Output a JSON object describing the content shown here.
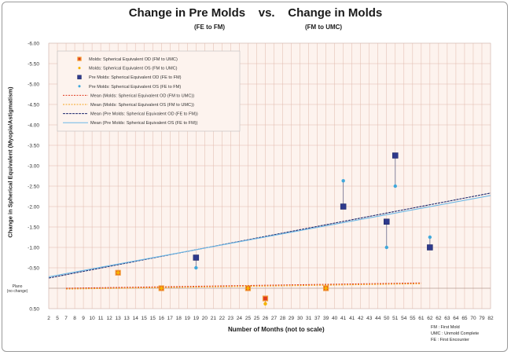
{
  "chart_data": {
    "type": "scatter",
    "title": "Change in Pre Molds    vs.    Change in Molds",
    "subtitle_left": "(FE to FM)",
    "subtitle_right": "(FM to UMC)",
    "xlabel": "Number of Months (not to scale)",
    "ylabel": "Change in Spherical Equivalent (Myopia/Astigmatism)",
    "categories": [
      "2",
      "5",
      "7",
      "8",
      "9",
      "10",
      "11",
      "12",
      "13",
      "13",
      "14",
      "15",
      "15",
      "16",
      "17",
      "18",
      "19",
      "19",
      "20",
      "21",
      "22",
      "23",
      "24",
      "25",
      "25",
      "26",
      "27",
      "28",
      "29",
      "30",
      "31",
      "37",
      "39",
      "40",
      "41",
      "41",
      "42",
      "43",
      "44",
      "50",
      "51",
      "54",
      "55",
      "61",
      "62",
      "62",
      "63",
      "64",
      "65",
      "70",
      "79",
      "82"
    ],
    "ylim": [
      0.5,
      -6.0
    ],
    "y_ticks": [
      {
        "value": 0.5,
        "label": "0.50"
      },
      {
        "value": 0.0,
        "label": "Plano\n(no change)"
      },
      {
        "value": -0.5,
        "label": "-0.50"
      },
      {
        "value": -1.0,
        "label": "-1.00"
      },
      {
        "value": -1.5,
        "label": "-1.50"
      },
      {
        "value": -2.0,
        "label": "-2.00"
      },
      {
        "value": -2.5,
        "label": "-2.50"
      },
      {
        "value": -3.0,
        "label": "-3.00"
      },
      {
        "value": -3.5,
        "label": "-3.50"
      },
      {
        "value": -4.0,
        "label": "-4.00"
      },
      {
        "value": -4.5,
        "label": "-4.50"
      },
      {
        "value": -5.0,
        "label": "-5.00"
      },
      {
        "value": -5.5,
        "label": "-5.50"
      },
      {
        "value": -6.0,
        "label": "-6.00"
      }
    ],
    "series": [
      {
        "name": "Molds: Spherical Equivalent OD (FM to UMC)",
        "marker": "square",
        "color": "#e03a1e",
        "edge": "#f2a03a",
        "points": [
          {
            "xi": 8,
            "y": -0.38
          },
          {
            "xi": 13,
            "y": 0.0
          },
          {
            "xi": 23,
            "y": 0.0
          },
          {
            "xi": 25,
            "y": 0.25
          },
          {
            "xi": 32,
            "y": 0.0
          }
        ]
      },
      {
        "name": "Molds: Spherical Equivalent OS (FM to UMC)",
        "marker": "dot",
        "color": "#f5b400",
        "points": [
          {
            "xi": 8,
            "y": -0.38
          },
          {
            "xi": 13,
            "y": 0.0
          },
          {
            "xi": 23,
            "y": 0.0
          },
          {
            "xi": 25,
            "y": 0.38
          },
          {
            "xi": 32,
            "y": 0.0
          }
        ]
      },
      {
        "name": "Pre Molds: Spherical Equivalent OD (FE to FM)",
        "marker": "square",
        "color": "#2e3a8c",
        "points": [
          {
            "xi": 17,
            "y": -0.75
          },
          {
            "xi": 34,
            "y": -2.0
          },
          {
            "xi": 39,
            "y": -1.63
          },
          {
            "xi": 40,
            "y": -3.25
          },
          {
            "xi": 44,
            "y": -1.0
          }
        ]
      },
      {
        "name": "Pre Molds: Spherical Equivalent OS (FE to FM)",
        "marker": "dot",
        "color": "#3fa8dc",
        "points": [
          {
            "xi": 17,
            "y": -0.5
          },
          {
            "xi": 34,
            "y": -2.63
          },
          {
            "xi": 39,
            "y": -1.0
          },
          {
            "xi": 40,
            "y": -2.5
          },
          {
            "xi": 44,
            "y": -1.25
          }
        ]
      }
    ],
    "trendlines": [
      {
        "name": "Mean (Molds: Spherical Equivalent OD (FM to UMC))",
        "color": "#e03a1e",
        "dash": "2,1.5",
        "from": {
          "xi": 2,
          "y": 0.0
        },
        "to": {
          "xi": 43,
          "y": -0.13
        }
      },
      {
        "name": "Mean (Molds: Spherical Equivalent OS (FM to UMC))",
        "color": "#f5a623",
        "dash": "2,1.5",
        "from": {
          "xi": 2,
          "y": 0.02
        },
        "to": {
          "xi": 43,
          "y": -0.11
        }
      },
      {
        "name": "Mean (Pre Molds: Spherical Equivalent OD (FE to FM))",
        "color": "#1f2a6e",
        "dash": "3,1",
        "from": {
          "xi": 0,
          "y": -0.25
        },
        "to": {
          "xi": 51,
          "y": -2.33
        }
      },
      {
        "name": "Mean (Pre Molds: Spherical Equivalent OS (FE to FM))",
        "color": "#6cb8e6",
        "dash": "",
        "from": {
          "xi": 0,
          "y": -0.28
        },
        "to": {
          "xi": 51,
          "y": -2.27
        }
      }
    ],
    "legend": {
      "placement": "top-left",
      "entries": [
        "Molds: Spherical Equivalent OD (FM to UMC)",
        "Molds: Spherical Equivalent OS (FM to UMC)",
        "Pre Molds: Spherical Equivalent OD (FE to FM)",
        "Pre Molds: Spherical Equivalent OS (FE to FM)",
        "Mean (Molds: Spherical Equivalent OD (FM to UMC))",
        "Mean (Molds: Spherical Equivalent OS (FM to UMC))",
        "Mean (Pre Molds: Spherical Equivalent OD (FE to FM))",
        "Mean (Pre Molds: Spherical Equivalent OS (FE to FM))"
      ]
    },
    "grid": true,
    "footnotes": [
      "FM :  First Mold",
      "UMC :  Unmold Complete",
      "FE :  First Encounter"
    ]
  }
}
